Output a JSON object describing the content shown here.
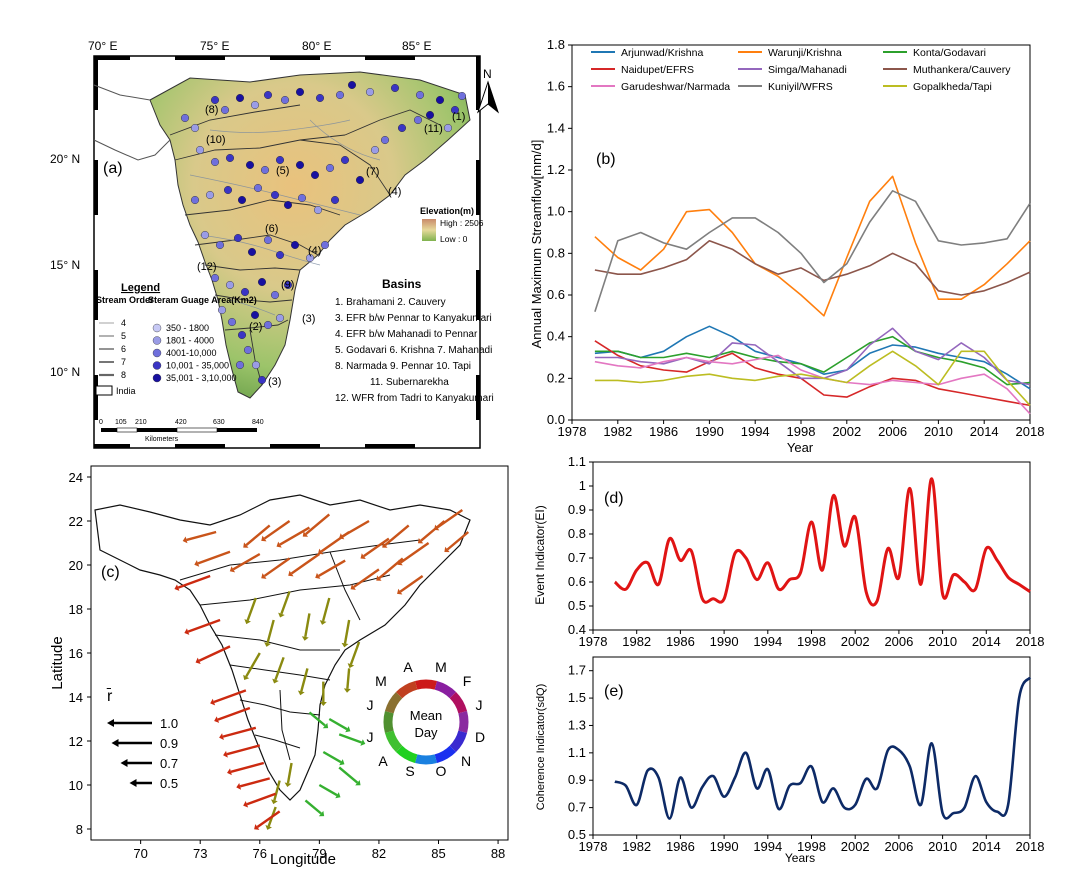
{
  "colors": {
    "arjunwad": "#1f77b4",
    "warunji": "#ff7f0e",
    "konta": "#2ca02c",
    "naidupet": "#d62728",
    "simga": "#9467bd",
    "muthankera": "#8c564b",
    "garudeshwar": "#e377c2",
    "kuniyil": "#7f7f7f",
    "gopalkheda": "#bcbd22",
    "event": "#e01414",
    "coherence": "#0d2a66",
    "arrow_red": "#cc2a10",
    "arrow_orange": "#c9541a",
    "arrow_olive": "#8a8a10",
    "arrow_green": "#35b030"
  },
  "panel_a": {
    "label": "(a)",
    "lon_labels": [
      "70° E",
      "75° E",
      "80° E",
      "85° E"
    ],
    "lat_labels": [
      "20° N",
      "15° N",
      "10° N"
    ],
    "north": "N",
    "legend_title": "Legend",
    "stream_order_title": "Stream Order",
    "stream_orders": [
      "4",
      "5",
      "6",
      "7",
      "8"
    ],
    "gauge_title": "Steram Guage Area(Km2)",
    "gauge_classes": [
      "350 - 1800",
      "1801 - 4000",
      "4001-10,000",
      "10,001 - 35,000",
      "35,001 - 3,10,000"
    ],
    "gauge_colors": [
      "#c7c9f5",
      "#9a9ce6",
      "#6f6fdc",
      "#3a35c4",
      "#1810a0"
    ],
    "india_label": "India",
    "elevation_title": "Elevation(m)",
    "elevation_high": "High : 2506",
    "elevation_low": "Low : 0",
    "basins_title": "Basins",
    "basin_lines": [
      "1. Brahamani    2. Cauvery",
      "3. EFR b/w Pennar to Kanyakumari",
      "4. EFR b/w Mahanadi to Pennar",
      "5. Godavari  6. Krishna   7. Mahanadi",
      "8. Narmada 9. Pennar   10. Tapi",
      "11. Subernarekha",
      "12. WFR from Tadri to Kanyakumari"
    ],
    "basin_numbers": [
      "(8)",
      "(10)",
      "(7)",
      "(11)",
      "(1)",
      "(5)",
      "(4)",
      "(6)",
      "(4)",
      "(12)",
      "(9)",
      "(2)",
      "(3)",
      "(3)"
    ],
    "scale_ticks": [
      "0",
      "105",
      "210",
      "420",
      "630",
      "840"
    ],
    "scale_unit": "Kilometers"
  },
  "panel_b": {
    "label": "(b)",
    "ylabel": "Annual Maximum Streamflow[mm/d]",
    "xlabel": "Year"
  },
  "panel_c": {
    "label": "(c)",
    "xlabel": "Longitude",
    "ylabel": "Latitude",
    "rbar": "r̄",
    "rbar_values": [
      "1.0",
      "0.9",
      "0.7",
      "0.5"
    ],
    "wheel_center": [
      "Mean",
      "Day"
    ],
    "months": [
      "J",
      "F",
      "M",
      "A",
      "M",
      "J",
      "J",
      "A",
      "S",
      "O",
      "N",
      "D"
    ]
  },
  "panel_d": {
    "label": "(d)",
    "ylabel": "Event Indicator(EI)"
  },
  "panel_e": {
    "label": "(e)",
    "ylabel": "Coherence Indicator(sdQ)",
    "xlabel": "Years"
  },
  "chart_data": [
    {
      "type": "line",
      "title": "(b)",
      "xlabel": "Year",
      "ylabel": "Annual Maximum Streamflow[mm/d]",
      "xlim": [
        1978,
        2018
      ],
      "ylim": [
        0,
        1.8
      ],
      "xticks": [
        1978,
        1982,
        1986,
        1990,
        1994,
        1998,
        2002,
        2006,
        2010,
        2014,
        2018
      ],
      "yticks": [
        0.0,
        0.2,
        0.4,
        0.6,
        0.8,
        1.0,
        1.2,
        1.4,
        1.6,
        1.8
      ],
      "x": [
        1980,
        1982,
        1984,
        1986,
        1988,
        1990,
        1992,
        1994,
        1996,
        1998,
        2000,
        2002,
        2004,
        2006,
        2008,
        2010,
        2012,
        2014,
        2016,
        2018
      ],
      "series": [
        {
          "name": "Arjunwad/Krishna",
          "color": "arjunwad",
          "values": [
            0.32,
            0.33,
            0.3,
            0.33,
            0.4,
            0.45,
            0.4,
            0.33,
            0.3,
            0.27,
            0.22,
            0.24,
            0.32,
            0.36,
            0.35,
            0.32,
            0.3,
            0.28,
            0.22,
            0.15
          ]
        },
        {
          "name": "Warunji/Krishna",
          "color": "warunji",
          "values": [
            0.88,
            0.78,
            0.72,
            0.82,
            1.0,
            1.01,
            0.9,
            0.75,
            0.69,
            0.6,
            0.5,
            0.78,
            1.05,
            1.17,
            0.85,
            0.58,
            0.58,
            0.65,
            0.75,
            0.86
          ]
        },
        {
          "name": "Konta/Godavari",
          "color": "konta",
          "values": [
            0.33,
            0.33,
            0.3,
            0.3,
            0.32,
            0.3,
            0.33,
            0.3,
            0.28,
            0.27,
            0.23,
            0.3,
            0.37,
            0.4,
            0.33,
            0.3,
            0.28,
            0.25,
            0.17,
            0.18
          ]
        },
        {
          "name": "Naidupet/EFRS",
          "color": "naidupet",
          "values": [
            0.38,
            0.31,
            0.26,
            0.24,
            0.23,
            0.28,
            0.32,
            0.25,
            0.22,
            0.2,
            0.12,
            0.11,
            0.16,
            0.2,
            0.19,
            0.15,
            0.13,
            0.11,
            0.09,
            0.07
          ]
        },
        {
          "name": "Simga/Mahanadi",
          "color": "simga",
          "values": [
            0.3,
            0.3,
            0.28,
            0.27,
            0.3,
            0.27,
            0.37,
            0.36,
            0.28,
            0.2,
            0.2,
            0.24,
            0.36,
            0.44,
            0.33,
            0.29,
            0.37,
            0.3,
            0.19,
            0.17
          ]
        },
        {
          "name": "Muthankera/Cauvery",
          "color": "muthankera",
          "values": [
            0.72,
            0.7,
            0.7,
            0.73,
            0.77,
            0.86,
            0.82,
            0.75,
            0.7,
            0.73,
            0.67,
            0.7,
            0.74,
            0.8,
            0.75,
            0.62,
            0.6,
            0.62,
            0.66,
            0.71
          ]
        },
        {
          "name": "Garudeshwar/Narmada",
          "color": "garudeshwar",
          "values": [
            0.28,
            0.26,
            0.25,
            0.28,
            0.3,
            0.28,
            0.27,
            0.29,
            0.31,
            0.24,
            0.2,
            0.18,
            0.17,
            0.19,
            0.18,
            0.17,
            0.2,
            0.22,
            0.15,
            0.03
          ]
        },
        {
          "name": "Kuniyil/WFRS",
          "color": "kuniyil",
          "values": [
            0.52,
            0.86,
            0.9,
            0.85,
            0.82,
            0.9,
            0.97,
            0.97,
            0.9,
            0.8,
            0.66,
            0.75,
            0.95,
            1.1,
            1.05,
            0.86,
            0.84,
            0.85,
            0.87,
            1.04
          ]
        },
        {
          "name": "Gopalkheda/Tapi",
          "color": "gopalkheda",
          "values": [
            0.19,
            0.19,
            0.18,
            0.19,
            0.21,
            0.22,
            0.2,
            0.19,
            0.21,
            0.22,
            0.2,
            0.18,
            0.26,
            0.33,
            0.26,
            0.17,
            0.33,
            0.33,
            0.19,
            0.07
          ]
        }
      ]
    },
    {
      "type": "line",
      "title": "(d)",
      "xlabel": "",
      "ylabel": "Event Indicator(EI)",
      "xlim": [
        1978,
        2018
      ],
      "ylim": [
        0.4,
        1.1
      ],
      "xticks": [
        1978,
        1982,
        1986,
        1990,
        1994,
        1998,
        2002,
        2006,
        2010,
        2014,
        2018
      ],
      "yticks": [
        0.4,
        0.5,
        0.6,
        0.7,
        0.8,
        0.9,
        1.0,
        1.1
      ],
      "x": [
        1980,
        1981,
        1982,
        1983,
        1984,
        1985,
        1986,
        1987,
        1988,
        1989,
        1990,
        1991,
        1992,
        1993,
        1994,
        1995,
        1996,
        1997,
        1998,
        1999,
        2000,
        2001,
        2002,
        2003,
        2004,
        2005,
        2006,
        2007,
        2008,
        2009,
        2010,
        2011,
        2012,
        2013,
        2014,
        2015,
        2016,
        2017,
        2018
      ],
      "series": [
        {
          "name": "Event Indicator",
          "color": "event",
          "values": [
            0.6,
            0.57,
            0.65,
            0.68,
            0.59,
            0.78,
            0.69,
            0.73,
            0.53,
            0.53,
            0.53,
            0.72,
            0.7,
            0.61,
            0.68,
            0.57,
            0.61,
            0.64,
            0.85,
            0.65,
            0.96,
            0.75,
            0.87,
            0.56,
            0.52,
            0.74,
            0.62,
            0.99,
            0.59,
            1.03,
            0.55,
            0.63,
            0.6,
            0.57,
            0.74,
            0.69,
            0.62,
            0.59,
            0.56
          ]
        }
      ]
    },
    {
      "type": "line",
      "title": "(e)",
      "xlabel": "Years",
      "ylabel": "Coherence Indicator(sdQ)",
      "xlim": [
        1978,
        2018
      ],
      "ylim": [
        0.5,
        1.8
      ],
      "xticks": [
        1978,
        1982,
        1986,
        1990,
        1994,
        1998,
        2002,
        2006,
        2010,
        2014,
        2018
      ],
      "yticks": [
        0.5,
        0.7,
        0.9,
        1.1,
        1.3,
        1.5,
        1.7
      ],
      "x": [
        1980,
        1981,
        1982,
        1983,
        1984,
        1985,
        1986,
        1987,
        1988,
        1989,
        1990,
        1991,
        1992,
        1993,
        1994,
        1995,
        1996,
        1997,
        1998,
        1999,
        2000,
        2001,
        2002,
        2003,
        2004,
        2005,
        2006,
        2007,
        2008,
        2009,
        2010,
        2011,
        2012,
        2013,
        2014,
        2015,
        2016,
        2017,
        2018
      ],
      "series": [
        {
          "name": "Coherence Indicator",
          "color": "coherence",
          "values": [
            0.89,
            0.86,
            0.72,
            0.97,
            0.92,
            0.62,
            0.92,
            0.7,
            0.85,
            0.93,
            0.78,
            0.92,
            1.1,
            0.84,
            0.98,
            0.69,
            0.86,
            0.88,
            1.0,
            0.74,
            0.84,
            0.7,
            0.72,
            0.91,
            0.84,
            1.12,
            1.12,
            1.0,
            0.72,
            1.17,
            0.66,
            0.66,
            0.7,
            0.93,
            0.74,
            0.67,
            0.72,
            1.5,
            1.65
          ]
        }
      ]
    },
    {
      "type": "scatter",
      "title": "(c)",
      "xlabel": "Longitude",
      "ylabel": "Latitude",
      "xlim": [
        67.5,
        88.5
      ],
      "ylim": [
        7.5,
        24.5
      ],
      "xticks": [
        70,
        73,
        76,
        79,
        82,
        85,
        88
      ],
      "yticks": [
        8,
        10,
        12,
        14,
        16,
        18,
        20,
        22,
        24
      ],
      "points": [
        {
          "lon": 76.5,
          "lat": 21.8,
          "dir": 220,
          "r": 0.9,
          "c": "arrow_orange"
        },
        {
          "lon": 77.5,
          "lat": 22.0,
          "dir": 215,
          "r": 0.9,
          "c": "arrow_orange"
        },
        {
          "lon": 78.5,
          "lat": 21.7,
          "dir": 210,
          "r": 1.0,
          "c": "arrow_orange"
        },
        {
          "lon": 79.5,
          "lat": 22.3,
          "dir": 220,
          "r": 0.9,
          "c": "arrow_orange"
        },
        {
          "lon": 80.5,
          "lat": 21.5,
          "dir": 215,
          "r": 1.0,
          "c": "arrow_orange"
        },
        {
          "lon": 81.5,
          "lat": 22.0,
          "dir": 210,
          "r": 0.9,
          "c": "arrow_orange"
        },
        {
          "lon": 82.5,
          "lat": 21.2,
          "dir": 215,
          "r": 0.9,
          "c": "arrow_orange"
        },
        {
          "lon": 83.5,
          "lat": 21.8,
          "dir": 220,
          "r": 0.9,
          "c": "arrow_orange"
        },
        {
          "lon": 84.5,
          "lat": 21.0,
          "dir": 215,
          "r": 1.0,
          "c": "arrow_orange"
        },
        {
          "lon": 85.3,
          "lat": 22.0,
          "dir": 220,
          "r": 0.9,
          "c": "arrow_orange"
        },
        {
          "lon": 86.2,
          "lat": 22.5,
          "dir": 215,
          "r": 0.9,
          "c": "arrow_orange"
        },
        {
          "lon": 86.5,
          "lat": 21.5,
          "dir": 220,
          "r": 0.8,
          "c": "arrow_orange"
        },
        {
          "lon": 73.8,
          "lat": 21.5,
          "dir": 195,
          "r": 0.9,
          "c": "arrow_orange"
        },
        {
          "lon": 74.5,
          "lat": 20.6,
          "dir": 200,
          "r": 1.0,
          "c": "arrow_orange"
        },
        {
          "lon": 76.0,
          "lat": 20.5,
          "dir": 210,
          "r": 0.9,
          "c": "arrow_orange"
        },
        {
          "lon": 77.5,
          "lat": 20.3,
          "dir": 215,
          "r": 0.9,
          "c": "arrow_orange"
        },
        {
          "lon": 79.0,
          "lat": 20.5,
          "dir": 215,
          "r": 1.0,
          "c": "arrow_orange"
        },
        {
          "lon": 80.3,
          "lat": 20.2,
          "dir": 210,
          "r": 0.9,
          "c": "arrow_orange"
        },
        {
          "lon": 82.0,
          "lat": 19.8,
          "dir": 215,
          "r": 0.9,
          "c": "arrow_orange"
        },
        {
          "lon": 83.2,
          "lat": 20.3,
          "dir": 220,
          "r": 0.9,
          "c": "arrow_orange"
        },
        {
          "lon": 84.2,
          "lat": 19.5,
          "dir": 215,
          "r": 0.8,
          "c": "arrow_orange"
        },
        {
          "lon": 73.5,
          "lat": 19.5,
          "dir": 200,
          "r": 1.0,
          "c": "arrow_red"
        },
        {
          "lon": 74.0,
          "lat": 17.5,
          "dir": 200,
          "r": 1.0,
          "c": "arrow_red"
        },
        {
          "lon": 74.5,
          "lat": 16.3,
          "dir": 205,
          "r": 1.0,
          "c": "arrow_red"
        },
        {
          "lon": 75.8,
          "lat": 18.5,
          "dir": 250,
          "r": 0.7,
          "c": "arrow_olive"
        },
        {
          "lon": 76.7,
          "lat": 17.5,
          "dir": 255,
          "r": 0.7,
          "c": "arrow_olive"
        },
        {
          "lon": 77.5,
          "lat": 18.8,
          "dir": 250,
          "r": 0.7,
          "c": "arrow_olive"
        },
        {
          "lon": 78.5,
          "lat": 17.8,
          "dir": 260,
          "r": 0.7,
          "c": "arrow_olive"
        },
        {
          "lon": 79.5,
          "lat": 18.5,
          "dir": 255,
          "r": 0.7,
          "c": "arrow_olive"
        },
        {
          "lon": 80.5,
          "lat": 17.5,
          "dir": 260,
          "r": 0.7,
          "c": "arrow_olive"
        },
        {
          "lon": 81.0,
          "lat": 16.5,
          "dir": 250,
          "r": 0.7,
          "c": "arrow_olive"
        },
        {
          "lon": 76.0,
          "lat": 16.0,
          "dir": 240,
          "r": 0.8,
          "c": "arrow_olive"
        },
        {
          "lon": 77.2,
          "lat": 15.8,
          "dir": 250,
          "r": 0.7,
          "c": "arrow_olive"
        },
        {
          "lon": 78.4,
          "lat": 15.3,
          "dir": 255,
          "r": 0.7,
          "c": "arrow_olive"
        },
        {
          "lon": 79.2,
          "lat": 14.7,
          "dir": 270,
          "r": 0.6,
          "c": "arrow_olive"
        },
        {
          "lon": 80.5,
          "lat": 15.3,
          "dir": 265,
          "r": 0.6,
          "c": "arrow_olive"
        },
        {
          "lon": 78.5,
          "lat": 13.3,
          "dir": 320,
          "r": 0.6,
          "c": "arrow_green"
        },
        {
          "lon": 79.5,
          "lat": 13.0,
          "dir": 330,
          "r": 0.6,
          "c": "arrow_green"
        },
        {
          "lon": 80.0,
          "lat": 12.3,
          "dir": 340,
          "r": 0.7,
          "c": "arrow_green"
        },
        {
          "lon": 79.2,
          "lat": 11.5,
          "dir": 330,
          "r": 0.6,
          "c": "arrow_green"
        },
        {
          "lon": 80.0,
          "lat": 10.8,
          "dir": 320,
          "r": 0.7,
          "c": "arrow_green"
        },
        {
          "lon": 79.0,
          "lat": 10.0,
          "dir": 330,
          "r": 0.6,
          "c": "arrow_green"
        },
        {
          "lon": 78.3,
          "lat": 9.3,
          "dir": 320,
          "r": 0.6,
          "c": "arrow_green"
        },
        {
          "lon": 77.6,
          "lat": 11.0,
          "dir": 260,
          "r": 0.6,
          "c": "arrow_olive"
        },
        {
          "lon": 77.0,
          "lat": 10.2,
          "dir": 255,
          "r": 0.6,
          "c": "arrow_olive"
        },
        {
          "lon": 76.8,
          "lat": 9.0,
          "dir": 250,
          "r": 0.6,
          "c": "arrow_olive"
        },
        {
          "lon": 75.3,
          "lat": 14.3,
          "dir": 200,
          "r": 1.0,
          "c": "arrow_red"
        },
        {
          "lon": 75.5,
          "lat": 13.5,
          "dir": 200,
          "r": 1.0,
          "c": "arrow_red"
        },
        {
          "lon": 75.8,
          "lat": 12.6,
          "dir": 195,
          "r": 1.0,
          "c": "arrow_red"
        },
        {
          "lon": 76.0,
          "lat": 11.8,
          "dir": 195,
          "r": 1.0,
          "c": "arrow_red"
        },
        {
          "lon": 76.2,
          "lat": 11.0,
          "dir": 195,
          "r": 1.0,
          "c": "arrow_red"
        },
        {
          "lon": 76.5,
          "lat": 10.3,
          "dir": 195,
          "r": 0.9,
          "c": "arrow_red"
        },
        {
          "lon": 76.8,
          "lat": 9.6,
          "dir": 200,
          "r": 0.9,
          "c": "arrow_red"
        },
        {
          "lon": 77.0,
          "lat": 8.8,
          "dir": 215,
          "r": 0.8,
          "c": "arrow_red"
        }
      ]
    }
  ]
}
